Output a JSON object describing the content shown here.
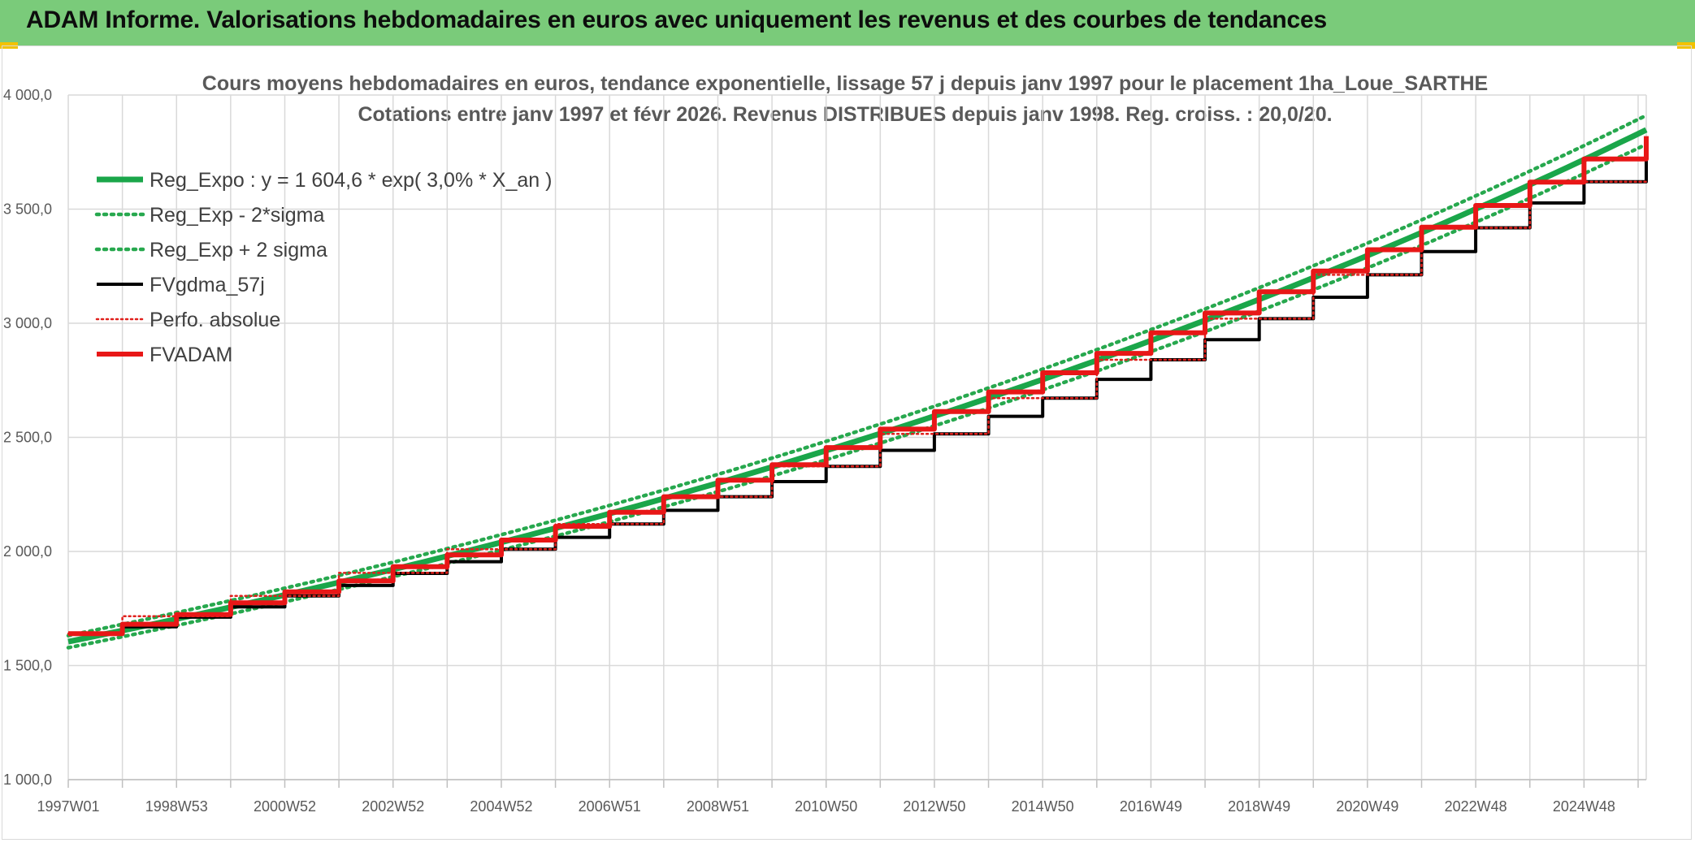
{
  "banner": {
    "title": "ADAM Informe. Valorisations hebdomadaires en euros avec uniquement les revenus et des courbes de tendances"
  },
  "colors": {
    "banner": "#7acb7a",
    "reg": "#1aa64a",
    "band": "#27a84e",
    "fvgdma": "#000000",
    "perfo": "#e0201c",
    "fvadam": "#e81717",
    "grid": "#d9d9d9"
  },
  "chart_data": {
    "type": "line",
    "title_line1": "Cours moyens hebdomadaires en euros, tendance exponentielle, lissage 57 j depuis janv 1997 pour le placement 1ha_Loue_SARTHE",
    "title_line2": "Cotations entre janv 1997 et févr 2026. Revenus DISTRIBUES depuis janv 1998. Reg. croiss. : 20,0/20.",
    "xlabel": "",
    "ylabel": "",
    "x_tick_labels": [
      "1997W01",
      "1998W53",
      "2000W52",
      "2002W52",
      "2004W52",
      "2006W51",
      "2008W51",
      "2010W50",
      "2012W50",
      "2014W50",
      "2016W49",
      "2018W49",
      "2020W49",
      "2022W48",
      "2024W48"
    ],
    "x_range_years": [
      1997.0,
      2026.15
    ],
    "y_tick_labels": [
      "1 000,0",
      "1 500,0",
      "2 000,0",
      "2 500,0",
      "3 000,0",
      "3 500,0",
      "4 000,0"
    ],
    "ylim": [
      1000,
      4000
    ],
    "legend_position": "top-left",
    "grid": true,
    "regression": {
      "a": 1604.6,
      "rate": 0.03,
      "sigma_factor": 0.0165
    },
    "series": [
      {
        "name": "Reg_Expo : y = 1 604,6 * exp( 3,0% *  X_an )",
        "style": "solid-thick",
        "color_key": "reg",
        "x": [
          1997,
          2001,
          2005,
          2009,
          2013,
          2017,
          2021,
          2025,
          2026.15
        ],
        "y": [
          1604.6,
          1810.1,
          2041.8,
          2303.2,
          2598.2,
          2930.8,
          3306.1,
          3729.5,
          3860.0
        ]
      },
      {
        "name": "Reg_Exp - 2*sigma",
        "style": "dotted",
        "color_key": "band",
        "x": [
          1997,
          2001,
          2005,
          2009,
          2013,
          2017,
          2021,
          2025,
          2026.15
        ],
        "y": [
          1578.1,
          1780.2,
          2008.1,
          2265.2,
          2555.3,
          2882.5,
          3251.5,
          3668.0,
          3796.3
        ]
      },
      {
        "name": "Reg_Exp + 2 sigma",
        "style": "dotted",
        "color_key": "band",
        "x": [
          1997,
          2001,
          2005,
          2009,
          2013,
          2017,
          2021,
          2025,
          2026.15
        ],
        "y": [
          1631.1,
          1840.0,
          2075.5,
          2341.2,
          2641.1,
          2979.2,
          3360.6,
          3791.0,
          3923.7
        ]
      },
      {
        "name": "FVgdma_57j",
        "style": "solid",
        "color_key": "fvgdma",
        "x": [
          1997,
          1998,
          1999,
          2000,
          2001,
          2002,
          2003,
          2004,
          2005,
          2006,
          2007,
          2008,
          2009,
          2010,
          2011,
          2012,
          2013,
          2014,
          2015,
          2016,
          2017,
          2018,
          2019,
          2020,
          2021,
          2022,
          2023,
          2024,
          2025,
          2026.15
        ],
        "y": [
          1640,
          1670,
          1712,
          1757,
          1805,
          1851,
          1904,
          1955,
          2010,
          2062,
          2120,
          2180,
          2240,
          2306,
          2373,
          2443,
          2515,
          2592,
          2672,
          2754,
          2840,
          2928,
          3020,
          3114,
          3212,
          3314,
          3418,
          3527,
          3620,
          3800
        ]
      },
      {
        "name": "Perfo. absolue",
        "style": "dotted",
        "color_key": "perfo",
        "x": [
          1997,
          1998,
          1998,
          2000,
          2000,
          2002,
          2002,
          2004,
          2004,
          2006,
          2006,
          2008,
          2008,
          2010,
          2010,
          2012,
          2012,
          2014,
          2014,
          2016,
          2016,
          2018,
          2018,
          2020,
          2020,
          2022,
          2022,
          2024,
          2024,
          2026.15
        ],
        "y": [
          1640,
          1640,
          1716,
          1716,
          1805,
          1805,
          1906,
          1906,
          2010,
          2010,
          2120,
          2120,
          2240,
          2240,
          2373,
          2373,
          2515,
          2515,
          2672,
          2672,
          2840,
          2840,
          3020,
          3020,
          3212,
          3212,
          3418,
          3418,
          3620,
          3620
        ]
      },
      {
        "name": "FVADAM",
        "style": "step-thick",
        "color_key": "fvadam",
        "x": [
          1997,
          1998,
          1999,
          2000,
          2001,
          2002,
          2003,
          2004,
          2005,
          2006,
          2007,
          2008,
          2009,
          2010,
          2011,
          2012,
          2013,
          2014,
          2015,
          2016,
          2017,
          2018,
          2019,
          2020,
          2021,
          2022,
          2023,
          2024,
          2025,
          2026.15
        ],
        "y": [
          1640,
          1681,
          1723,
          1775,
          1823,
          1871,
          1933,
          1985,
          2050,
          2110,
          2172,
          2240,
          2312,
          2380,
          2455,
          2536,
          2613,
          2699,
          2783,
          2868,
          2958,
          3045,
          3138,
          3229,
          3322,
          3421,
          3516,
          3618,
          3720,
          3820
        ]
      }
    ]
  }
}
